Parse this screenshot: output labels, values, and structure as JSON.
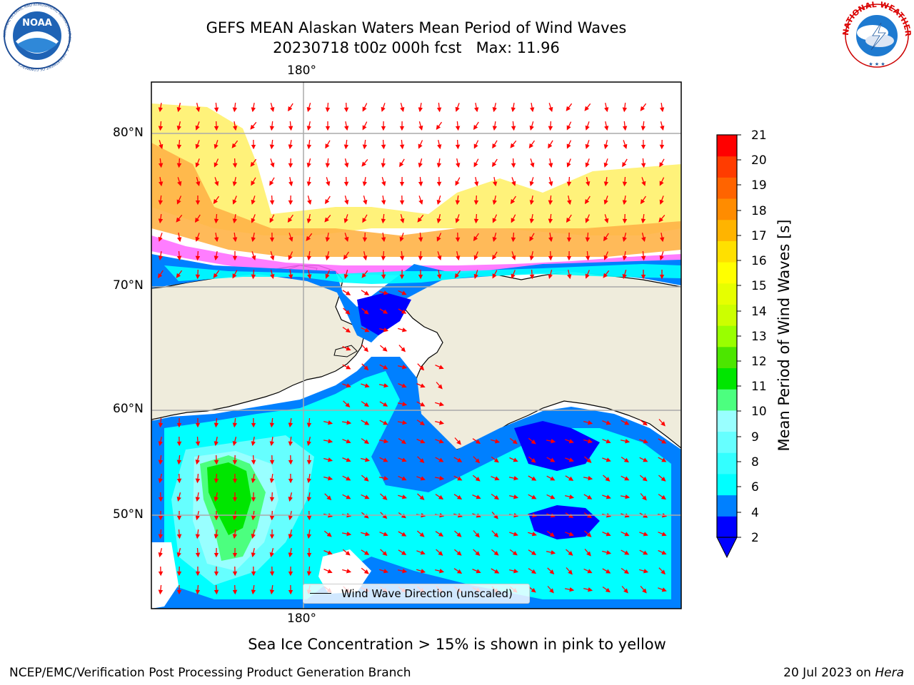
{
  "title": {
    "line1": "GEFS MEAN Alaskan Waters Mean Period of Wind Waves",
    "line2": "20230718 t00z 000h fcst   Max: 11.96"
  },
  "map": {
    "lon_label_top": "180°",
    "lon_label_bottom": "180°",
    "lat_labels": [
      "80°N",
      "70°N",
      "60°N",
      "50°N"
    ],
    "legend_label": "Wind Wave Direction (unscaled)",
    "land_color": "#efecdc",
    "arrow_color": "#ff0000",
    "ice_colors": [
      "#ff66ff",
      "#ffb347",
      "#ffd92e",
      "#fff27a"
    ]
  },
  "colorbar": {
    "label": "Mean Period of Wind Waves [s]",
    "ticks": [
      "21",
      "20",
      "19",
      "18",
      "17",
      "16",
      "15",
      "14",
      "13",
      "12",
      "11",
      "10",
      "9",
      "8",
      "6",
      "4",
      "2"
    ],
    "colors": [
      "#0000ff",
      "#0080ff",
      "#00ffff",
      "#33ffff",
      "#66ffff",
      "#99ffff",
      "#4cff7f",
      "#00e600",
      "#4ce600",
      "#99ff00",
      "#ccff00",
      "#e6ff00",
      "#ffff00",
      "#ffe000",
      "#ffb400",
      "#ff8c00",
      "#ff6400",
      "#ff3c00",
      "#ff0000"
    ]
  },
  "caption": "Sea Ice Concentration > 15% is shown in pink to yellow",
  "footer": {
    "credit": "NCEP/EMC/Verification Post Processing Product Generation Branch",
    "date": "20 Jul 2023 on ",
    "machine": "Hera"
  },
  "logos": {
    "noaa_text": "NOAA",
    "noaa_ring": "NATIONAL OCEANIC AND ATMOSPHERIC ADMINISTRATION · U.S. DEPARTMENT OF COMMERCE",
    "nws_ring": "NATIONAL WEATHER SERVICE"
  }
}
